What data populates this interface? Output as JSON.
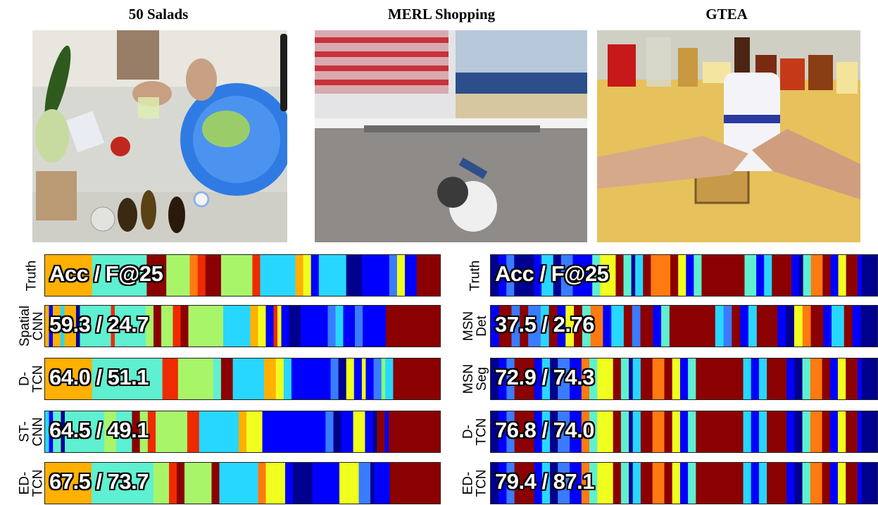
{
  "datasets": [
    {
      "title": "50 Salads"
    },
    {
      "title": "MERL Shopping"
    },
    {
      "title": "GTEA"
    }
  ],
  "palette": [
    "#00008f",
    "#0000ff",
    "#3a7bff",
    "#28d7ff",
    "#5ef0d0",
    "#a8f56a",
    "#f0ff1e",
    "#ffb000",
    "#ff7a10",
    "#f02a00",
    "#8b0000",
    "#7dff7d"
  ],
  "salads": {
    "rows": [
      {
        "label": [
          "Truth"
        ],
        "metric": "Acc / F@25",
        "segments": [
          [
            0.12,
            7
          ],
          [
            0.14,
            4
          ],
          [
            0.05,
            10
          ],
          [
            0.06,
            5
          ],
          [
            0.02,
            8
          ],
          [
            0.02,
            9
          ],
          [
            0.04,
            10
          ],
          [
            0.08,
            5
          ],
          [
            0.02,
            9
          ],
          [
            0.09,
            3
          ],
          [
            0.02,
            7
          ],
          [
            0.02,
            6
          ],
          [
            0.02,
            1
          ],
          [
            0.07,
            3
          ],
          [
            0.04,
            0
          ],
          [
            0.07,
            1
          ],
          [
            0.02,
            2
          ],
          [
            0.02,
            6
          ],
          [
            0.03,
            1
          ],
          [
            0.06,
            10
          ]
        ]
      },
      {
        "label": [
          "Spatial",
          "CNN"
        ],
        "metric": "59.3 / 24.7",
        "segments": [
          [
            0.01,
            7
          ],
          [
            0.01,
            1
          ],
          [
            0.02,
            7
          ],
          [
            0.01,
            3
          ],
          [
            0.03,
            7
          ],
          [
            0.01,
            0
          ],
          [
            0.08,
            4
          ],
          [
            0.01,
            9
          ],
          [
            0.02,
            4
          ],
          [
            0.06,
            4
          ],
          [
            0.02,
            5
          ],
          [
            0.02,
            10
          ],
          [
            0.03,
            5
          ],
          [
            0.02,
            9
          ],
          [
            0.02,
            10
          ],
          [
            0.02,
            5
          ],
          [
            0.07,
            5
          ],
          [
            0.07,
            3
          ],
          [
            0.02,
            7
          ],
          [
            0.02,
            6
          ],
          [
            0.02,
            1
          ],
          [
            0.01,
            9
          ],
          [
            0.01,
            6
          ],
          [
            0.02,
            1
          ],
          [
            0.03,
            0
          ],
          [
            0.07,
            1
          ],
          [
            0.02,
            2
          ],
          [
            0.02,
            3
          ],
          [
            0.03,
            1
          ],
          [
            0.02,
            2
          ],
          [
            0.06,
            1
          ],
          [
            0.14,
            10
          ]
        ]
      },
      {
        "label": [
          "D-",
          "TCN"
        ],
        "metric": "64.0 / 51.1",
        "segments": [
          [
            0.12,
            7
          ],
          [
            0.18,
            4
          ],
          [
            0.04,
            9
          ],
          [
            0.09,
            5
          ],
          [
            0.02,
            4
          ],
          [
            0.03,
            10
          ],
          [
            0.08,
            3
          ],
          [
            0.03,
            7
          ],
          [
            0.02,
            6
          ],
          [
            0.02,
            3
          ],
          [
            0.1,
            1
          ],
          [
            0.02,
            2
          ],
          [
            0.02,
            0
          ],
          [
            0.02,
            6
          ],
          [
            0.02,
            1
          ],
          [
            0.01,
            6
          ],
          [
            0.02,
            1
          ],
          [
            0.02,
            2
          ],
          [
            0.01,
            11
          ],
          [
            0.02,
            3
          ],
          [
            0.12,
            10
          ]
        ]
      },
      {
        "label": [
          "ST-",
          "CNN"
        ],
        "metric": "64.5 / 49.1",
        "segments": [
          [
            0.01,
            3
          ],
          [
            0.01,
            1
          ],
          [
            0.02,
            4
          ],
          [
            0.01,
            0
          ],
          [
            0.1,
            4
          ],
          [
            0.03,
            5
          ],
          [
            0.04,
            4
          ],
          [
            0.02,
            10
          ],
          [
            0.02,
            5
          ],
          [
            0.02,
            9
          ],
          [
            0.08,
            5
          ],
          [
            0.03,
            9
          ],
          [
            0.1,
            3
          ],
          [
            0.02,
            7
          ],
          [
            0.04,
            6
          ],
          [
            0.08,
            1
          ],
          [
            0.08,
            1
          ],
          [
            0.02,
            2
          ],
          [
            0.02,
            0
          ],
          [
            0.03,
            1
          ],
          [
            0.03,
            6
          ],
          [
            0.02,
            1
          ],
          [
            0.01,
            0
          ],
          [
            0.02,
            10
          ],
          [
            0.01,
            1
          ],
          [
            0.13,
            10
          ]
        ]
      },
      {
        "label": [
          "ED-",
          "TCN"
        ],
        "metric": "67.5 / 73.7",
        "segments": [
          [
            0.12,
            7
          ],
          [
            0.16,
            4
          ],
          [
            0.04,
            5
          ],
          [
            0.02,
            9
          ],
          [
            0.02,
            10
          ],
          [
            0.07,
            5
          ],
          [
            0.02,
            10
          ],
          [
            0.1,
            3
          ],
          [
            0.02,
            8
          ],
          [
            0.05,
            6
          ],
          [
            0.02,
            1
          ],
          [
            0.05,
            0
          ],
          [
            0.07,
            1
          ],
          [
            0.05,
            6
          ],
          [
            0.03,
            2
          ],
          [
            0.01,
            0
          ],
          [
            0.04,
            1
          ],
          [
            0.13,
            10
          ]
        ]
      }
    ]
  },
  "gtea": {
    "rows": [
      {
        "label": [
          "Truth"
        ],
        "metric": "Acc / F@25",
        "segments": [
          [
            0.02,
            0
          ],
          [
            0.02,
            1
          ],
          [
            0.02,
            2
          ],
          [
            0.05,
            0
          ],
          [
            0.02,
            1
          ],
          [
            0.03,
            3
          ],
          [
            0.02,
            0
          ],
          [
            0.03,
            2
          ],
          [
            0.05,
            1
          ],
          [
            0.02,
            4
          ],
          [
            0.04,
            6
          ],
          [
            0.02,
            10
          ],
          [
            0.02,
            4
          ],
          [
            0.01,
            0
          ],
          [
            0.02,
            3
          ],
          [
            0.02,
            10
          ],
          [
            0.05,
            8
          ],
          [
            0.02,
            10
          ],
          [
            0.02,
            6
          ],
          [
            0.02,
            1
          ],
          [
            0.02,
            4
          ],
          [
            0.11,
            10
          ],
          [
            0.03,
            4
          ],
          [
            0.02,
            1
          ],
          [
            0.02,
            3
          ],
          [
            0.05,
            10
          ],
          [
            0.02,
            1
          ],
          [
            0.01,
            0
          ],
          [
            0.02,
            4
          ],
          [
            0.03,
            8
          ],
          [
            0.02,
            10
          ],
          [
            0.02,
            1
          ],
          [
            0.02,
            6
          ],
          [
            0.03,
            10
          ],
          [
            0.01,
            1
          ],
          [
            0.04,
            0
          ]
        ]
      },
      {
        "label": [
          "MSN",
          "Det"
        ],
        "metric": "37.5 / 2.76",
        "segments": [
          [
            0.02,
            1
          ],
          [
            0.03,
            10
          ],
          [
            0.02,
            2
          ],
          [
            0.02,
            10
          ],
          [
            0.03,
            2
          ],
          [
            0.02,
            3
          ],
          [
            0.02,
            10
          ],
          [
            0.02,
            1
          ],
          [
            0.02,
            6
          ],
          [
            0.02,
            10
          ],
          [
            0.02,
            4
          ],
          [
            0.03,
            8
          ],
          [
            0.02,
            1
          ],
          [
            0.03,
            3
          ],
          [
            0.02,
            10
          ],
          [
            0.02,
            2
          ],
          [
            0.03,
            10
          ],
          [
            0.02,
            1
          ],
          [
            0.02,
            4
          ],
          [
            0.11,
            10
          ],
          [
            0.02,
            3
          ],
          [
            0.02,
            2
          ],
          [
            0.02,
            10
          ],
          [
            0.02,
            1
          ],
          [
            0.02,
            3
          ],
          [
            0.05,
            10
          ],
          [
            0.02,
            1
          ],
          [
            0.02,
            0
          ],
          [
            0.02,
            6
          ],
          [
            0.02,
            8
          ],
          [
            0.03,
            10
          ],
          [
            0.02,
            1
          ],
          [
            0.03,
            3
          ],
          [
            0.02,
            10
          ],
          [
            0.02,
            1
          ],
          [
            0.04,
            0
          ]
        ]
      },
      {
        "label": [
          "MSN",
          "Seg"
        ],
        "metric": "72.9 / 74.3",
        "segments": [
          [
            0.02,
            0
          ],
          [
            0.02,
            1
          ],
          [
            0.02,
            2
          ],
          [
            0.05,
            10
          ],
          [
            0.02,
            1
          ],
          [
            0.02,
            3
          ],
          [
            0.02,
            0
          ],
          [
            0.03,
            2
          ],
          [
            0.03,
            1
          ],
          [
            0.02,
            8
          ],
          [
            0.02,
            4
          ],
          [
            0.04,
            6
          ],
          [
            0.02,
            10
          ],
          [
            0.02,
            4
          ],
          [
            0.01,
            0
          ],
          [
            0.02,
            3
          ],
          [
            0.03,
            10
          ],
          [
            0.03,
            8
          ],
          [
            0.02,
            10
          ],
          [
            0.02,
            6
          ],
          [
            0.02,
            1
          ],
          [
            0.02,
            4
          ],
          [
            0.12,
            10
          ],
          [
            0.02,
            3
          ],
          [
            0.02,
            1
          ],
          [
            0.02,
            3
          ],
          [
            0.05,
            10
          ],
          [
            0.02,
            1
          ],
          [
            0.02,
            0
          ],
          [
            0.02,
            4
          ],
          [
            0.03,
            8
          ],
          [
            0.02,
            10
          ],
          [
            0.02,
            1
          ],
          [
            0.02,
            6
          ],
          [
            0.03,
            10
          ],
          [
            0.01,
            1
          ],
          [
            0.04,
            0
          ]
        ]
      },
      {
        "label": [
          "D-",
          "TCN"
        ],
        "metric": "76.8 / 74.0",
        "segments": [
          [
            0.02,
            0
          ],
          [
            0.02,
            1
          ],
          [
            0.02,
            2
          ],
          [
            0.05,
            10
          ],
          [
            0.02,
            1
          ],
          [
            0.02,
            3
          ],
          [
            0.02,
            0
          ],
          [
            0.03,
            2
          ],
          [
            0.03,
            1
          ],
          [
            0.02,
            8
          ],
          [
            0.02,
            4
          ],
          [
            0.04,
            6
          ],
          [
            0.02,
            10
          ],
          [
            0.02,
            4
          ],
          [
            0.01,
            0
          ],
          [
            0.02,
            3
          ],
          [
            0.03,
            10
          ],
          [
            0.03,
            8
          ],
          [
            0.02,
            10
          ],
          [
            0.02,
            6
          ],
          [
            0.02,
            1
          ],
          [
            0.02,
            4
          ],
          [
            0.12,
            10
          ],
          [
            0.02,
            3
          ],
          [
            0.02,
            1
          ],
          [
            0.02,
            3
          ],
          [
            0.05,
            10
          ],
          [
            0.02,
            1
          ],
          [
            0.02,
            0
          ],
          [
            0.02,
            4
          ],
          [
            0.03,
            8
          ],
          [
            0.02,
            10
          ],
          [
            0.02,
            1
          ],
          [
            0.02,
            6
          ],
          [
            0.03,
            10
          ],
          [
            0.01,
            1
          ],
          [
            0.04,
            0
          ]
        ]
      },
      {
        "label": [
          "ED-",
          "TCN"
        ],
        "metric": "79.4 / 87.1",
        "segments": [
          [
            0.02,
            0
          ],
          [
            0.02,
            1
          ],
          [
            0.02,
            2
          ],
          [
            0.05,
            10
          ],
          [
            0.02,
            1
          ],
          [
            0.02,
            3
          ],
          [
            0.02,
            0
          ],
          [
            0.03,
            2
          ],
          [
            0.03,
            1
          ],
          [
            0.02,
            8
          ],
          [
            0.02,
            4
          ],
          [
            0.04,
            6
          ],
          [
            0.02,
            10
          ],
          [
            0.02,
            4
          ],
          [
            0.01,
            0
          ],
          [
            0.02,
            3
          ],
          [
            0.03,
            10
          ],
          [
            0.03,
            8
          ],
          [
            0.02,
            10
          ],
          [
            0.02,
            6
          ],
          [
            0.02,
            1
          ],
          [
            0.02,
            4
          ],
          [
            0.12,
            10
          ],
          [
            0.02,
            3
          ],
          [
            0.02,
            1
          ],
          [
            0.02,
            3
          ],
          [
            0.05,
            10
          ],
          [
            0.02,
            1
          ],
          [
            0.02,
            0
          ],
          [
            0.02,
            4
          ],
          [
            0.03,
            8
          ],
          [
            0.02,
            10
          ],
          [
            0.02,
            1
          ],
          [
            0.02,
            6
          ],
          [
            0.03,
            10
          ],
          [
            0.01,
            1
          ],
          [
            0.04,
            0
          ]
        ]
      }
    ]
  }
}
